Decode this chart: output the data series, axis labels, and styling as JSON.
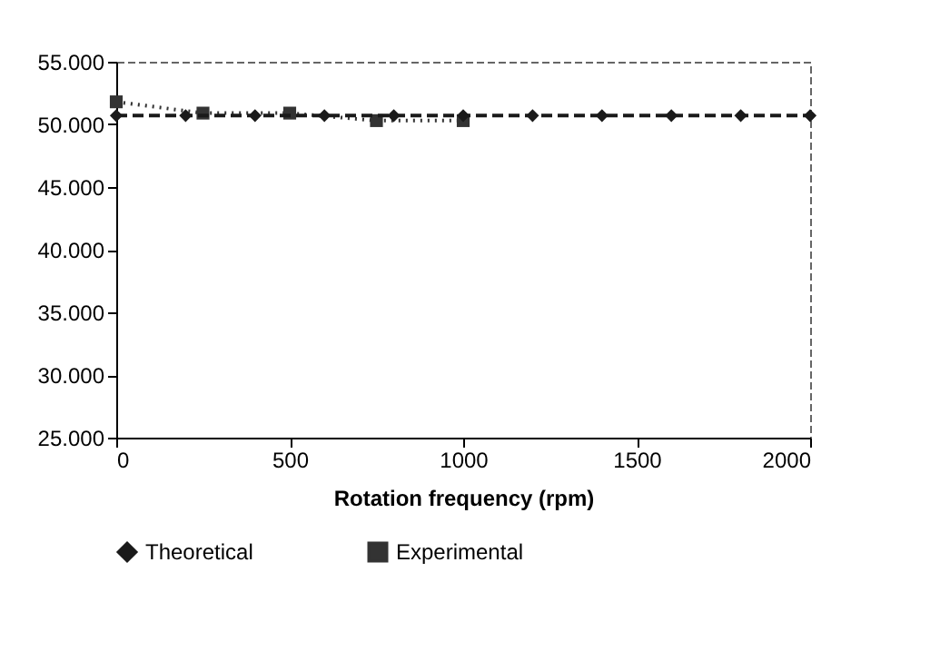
{
  "chart_data": {
    "type": "line",
    "xlabel": "Rotation frequency (rpm)",
    "xlim": [
      0,
      2000
    ],
    "xticks": [
      0,
      500,
      1000,
      1500,
      2000
    ],
    "ylim": [
      25000,
      55000
    ],
    "yticks": [
      {
        "value": 25000,
        "label": "25.000"
      },
      {
        "value": 30000,
        "label": "30.000"
      },
      {
        "value": 35000,
        "label": "35.000"
      },
      {
        "value": 40000,
        "label": "40.000"
      },
      {
        "value": 45000,
        "label": "45.000"
      },
      {
        "value": 50000,
        "label": "50.000"
      },
      {
        "value": 55000,
        "label": "55.000"
      }
    ],
    "legend": "bottom",
    "grid": false,
    "series": [
      {
        "name": "Theoretical",
        "color": "#1a1a1a",
        "marker": "diamond",
        "line_style": "dashed",
        "x": [
          0,
          200,
          400,
          600,
          800,
          1000,
          1200,
          1400,
          1600,
          1800,
          2000
        ],
        "values": [
          50700,
          50700,
          50700,
          50700,
          50700,
          50700,
          50700,
          50700,
          50700,
          50700,
          50700
        ]
      },
      {
        "name": "Experimental",
        "color": "#333333",
        "marker": "square",
        "line_style": "dotted",
        "x": [
          0,
          250,
          500,
          750,
          1000
        ],
        "values": [
          51800,
          50900,
          50900,
          50300,
          50300
        ]
      }
    ]
  }
}
